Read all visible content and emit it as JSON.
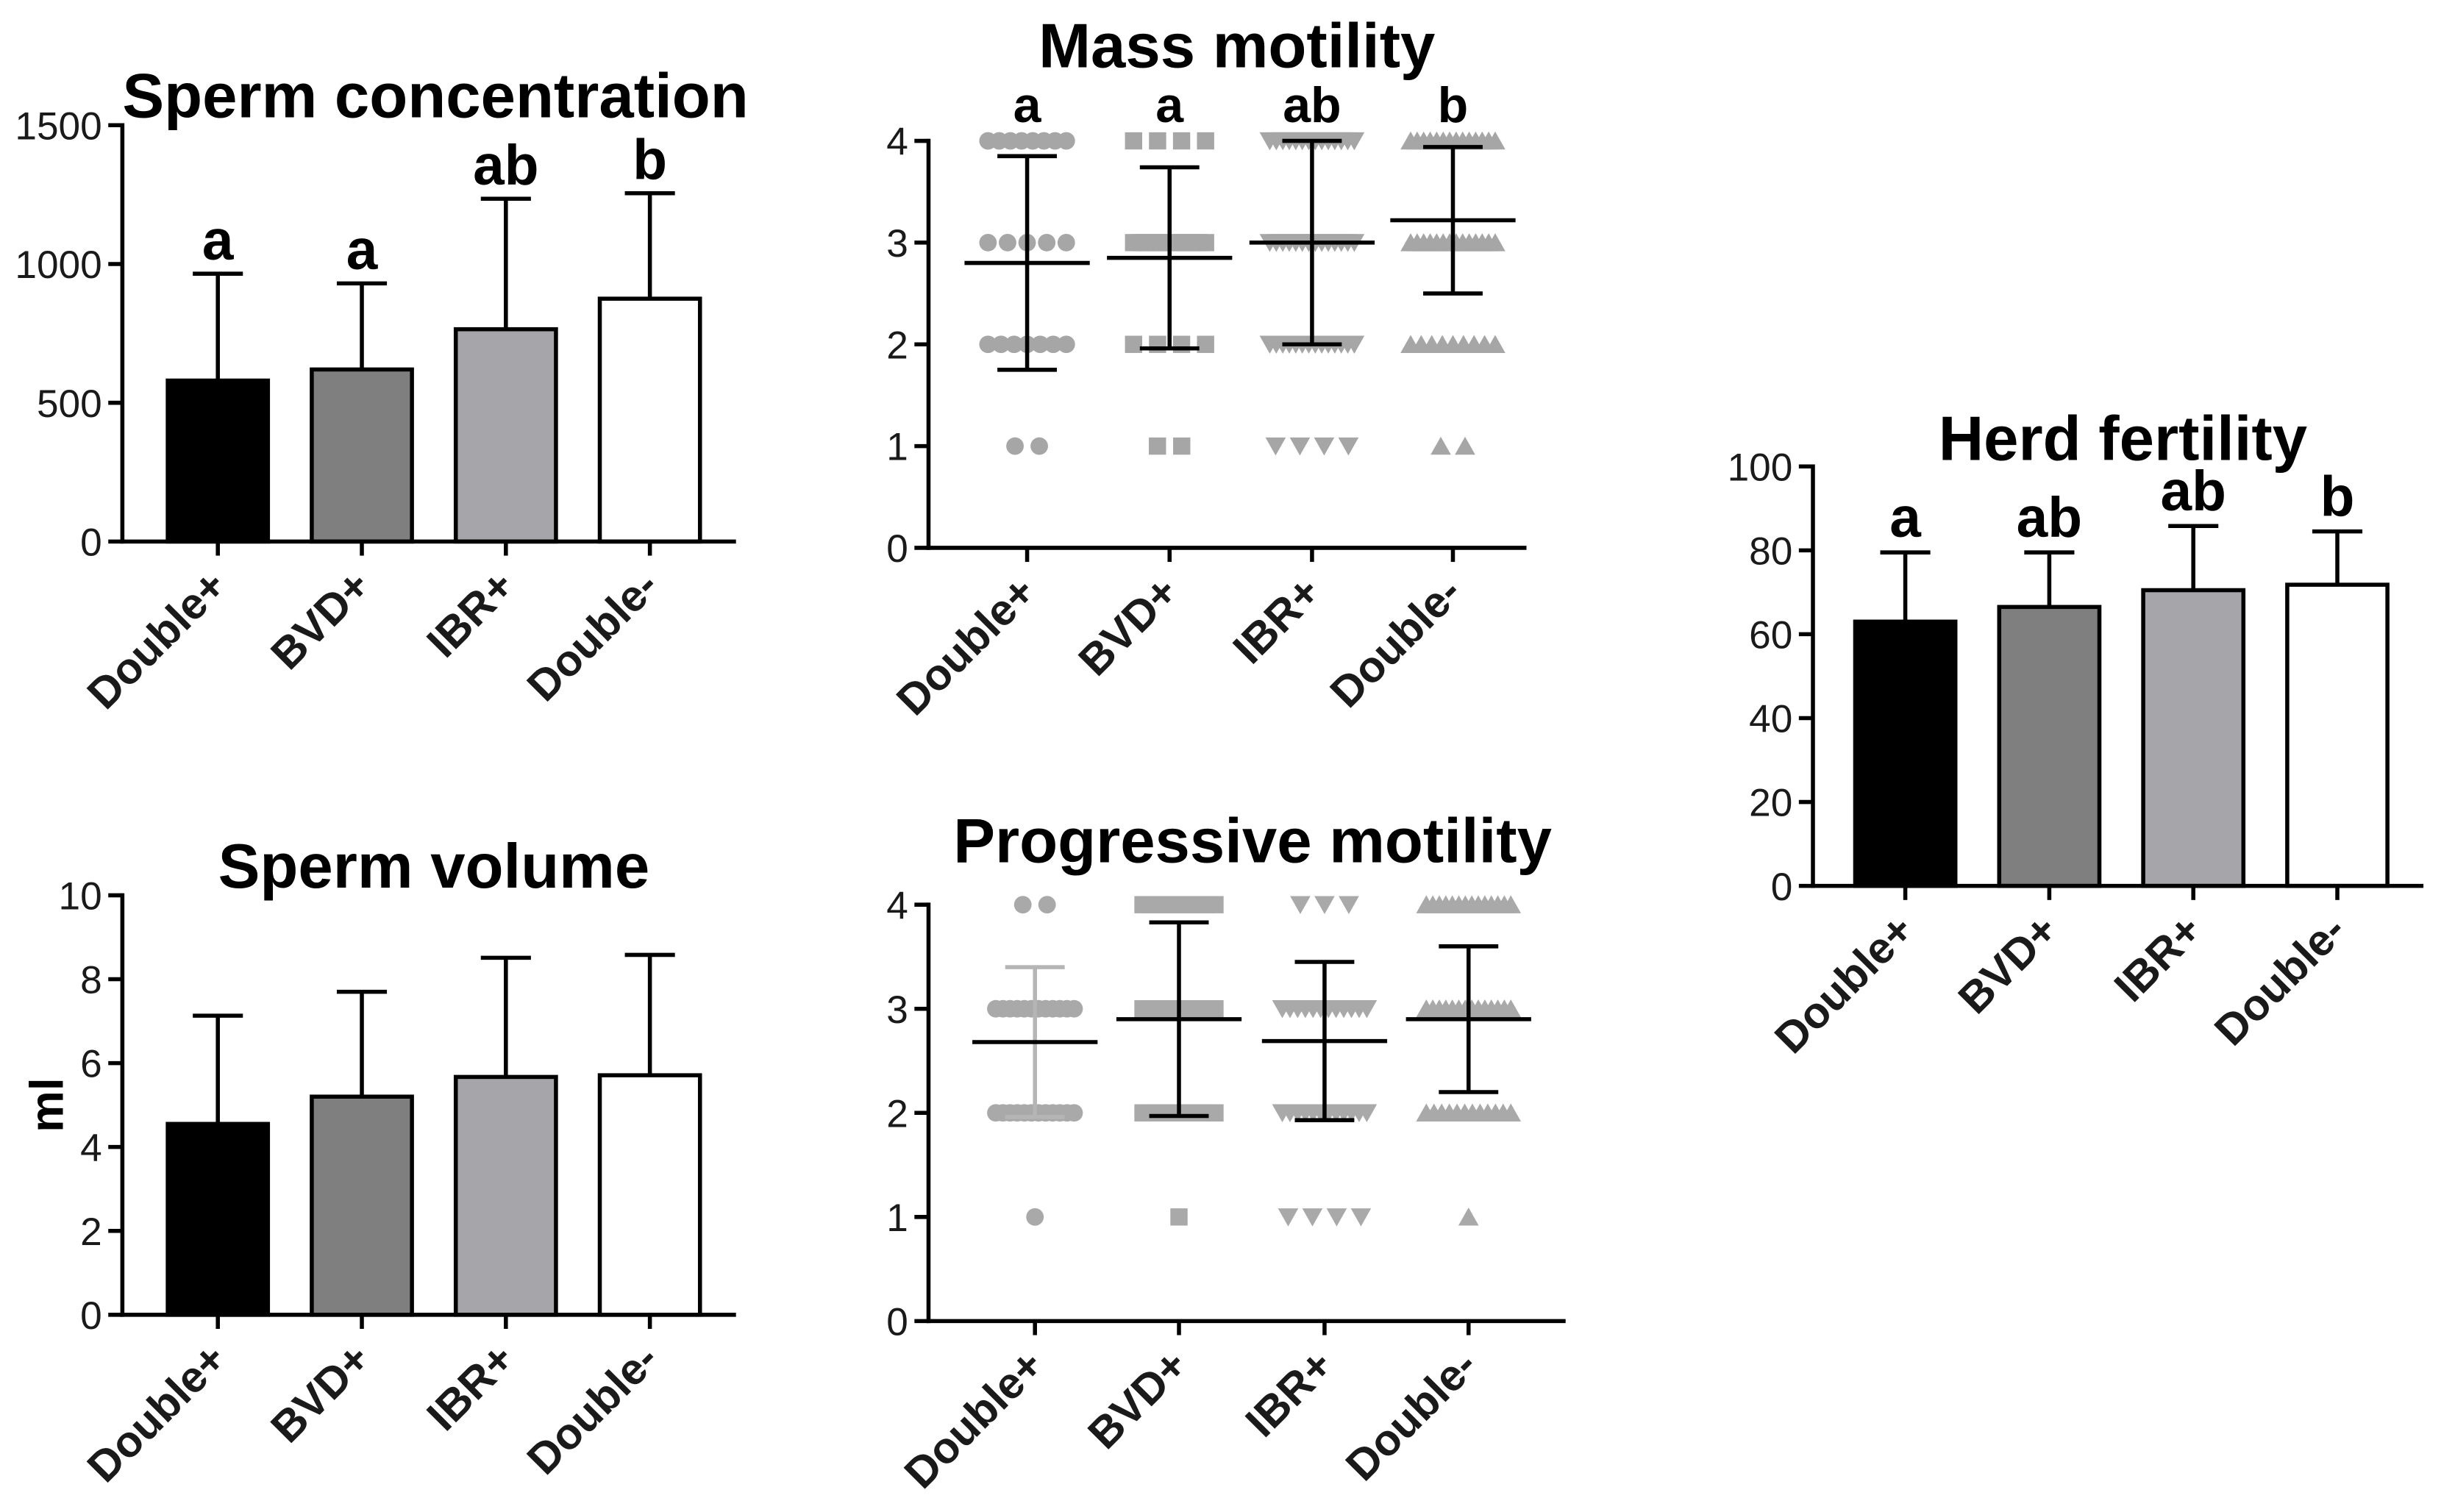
{
  "chart_data": [
    {
      "type": "bar",
      "title": "Sperm concentration",
      "categories": [
        "Double+",
        "BVD+",
        "IBR+",
        "Double-"
      ],
      "values": [
        580,
        620,
        765,
        875
      ],
      "sd": [
        385,
        310,
        470,
        380
      ],
      "letters": [
        "a",
        "a",
        "ab",
        "b"
      ],
      "ylim": [
        0,
        1500
      ],
      "yticks": [
        0,
        500,
        1000,
        1500
      ],
      "bar_colors": [
        "#000000",
        "#7f7f7f",
        "#a6a6aa",
        "#ffffff"
      ],
      "grid": false
    },
    {
      "type": "scatter",
      "title": "Mass motility",
      "categories": [
        "Double+",
        "BVD+",
        "IBR+",
        "Double-"
      ],
      "means": [
        2.8,
        2.85,
        3.0,
        3.22
      ],
      "sd": [
        1.05,
        0.89,
        1.0,
        0.72
      ],
      "letters": [
        "a",
        "a",
        "ab",
        "b"
      ],
      "ylim": [
        0,
        4
      ],
      "yticks": [
        0,
        1,
        2,
        3,
        4
      ],
      "markers": [
        "circle",
        "square",
        "triangle-down",
        "triangle-up"
      ],
      "point_color": "#a6a6a6",
      "sd_colors": [
        "#000000",
        "#000000",
        "#000000",
        "#000000"
      ],
      "points": [
        [
          {
            "y": 4,
            "n": 8
          },
          {
            "y": 3,
            "n": 5
          },
          {
            "y": 2,
            "n": 7
          },
          {
            "y": 1,
            "n": 2
          }
        ],
        [
          {
            "y": 4,
            "n": 4
          },
          {
            "y": 3,
            "n": 12
          },
          {
            "y": 2,
            "n": 4
          },
          {
            "y": 1,
            "n": 2
          }
        ],
        [
          {
            "y": 4,
            "n": 14
          },
          {
            "y": 3,
            "n": 14
          },
          {
            "y": 2,
            "n": 14
          },
          {
            "y": 1,
            "n": 4
          }
        ],
        [
          {
            "y": 4,
            "n": 14
          },
          {
            "y": 3,
            "n": 14
          },
          {
            "y": 2,
            "n": 9
          },
          {
            "y": 1,
            "n": 2
          }
        ]
      ],
      "grid": false
    },
    {
      "type": "bar",
      "title": "Herd fertility",
      "categories": [
        "Double+",
        "BVD+",
        "IBR+",
        "Double-"
      ],
      "values": [
        63,
        66.5,
        70.5,
        71.8
      ],
      "sd": [
        16.5,
        13,
        15.3,
        12.7
      ],
      "letters": [
        "a",
        "ab",
        "ab",
        "b"
      ],
      "ylim": [
        0,
        100
      ],
      "yticks": [
        0,
        20,
        40,
        60,
        80,
        100
      ],
      "bar_colors": [
        "#000000",
        "#7f7f7f",
        "#a6a6aa",
        "#ffffff"
      ],
      "grid": false
    },
    {
      "type": "bar",
      "title": "Sperm volume",
      "ylabel": "ml",
      "categories": [
        "Double+",
        "BVD+",
        "IBR+",
        "Double-"
      ],
      "values": [
        4.55,
        5.2,
        5.67,
        5.71
      ],
      "sd": [
        2.58,
        2.5,
        2.84,
        2.87
      ],
      "ylim": [
        0,
        10
      ],
      "yticks": [
        0,
        2,
        4,
        6,
        8,
        10
      ],
      "bar_colors": [
        "#000000",
        "#7f7f7f",
        "#a6a6aa",
        "#ffffff"
      ],
      "grid": false
    },
    {
      "type": "scatter",
      "title": "Progressive motility",
      "categories": [
        "Double+",
        "BVD+",
        "IBR+",
        "Double-"
      ],
      "means": [
        2.68,
        2.9,
        2.69,
        2.9
      ],
      "sd": [
        0.72,
        0.93,
        0.76,
        0.7
      ],
      "ylim": [
        0,
        4
      ],
      "yticks": [
        0,
        1,
        2,
        3,
        4
      ],
      "markers": [
        "circle",
        "square",
        "triangle-down",
        "triangle-up"
      ],
      "point_color": "#a9a9a9",
      "sd_colors": [
        "#b5b5b5",
        "#000000",
        "#000000",
        "#000000"
      ],
      "points": [
        [
          {
            "y": 4,
            "n": 2
          },
          {
            "y": 3,
            "n": 12
          },
          {
            "y": 2,
            "n": 12
          },
          {
            "y": 1,
            "n": 1
          }
        ],
        [
          {
            "y": 4,
            "n": 10
          },
          {
            "y": 3,
            "n": 10
          },
          {
            "y": 2,
            "n": 10
          },
          {
            "y": 1,
            "n": 1
          }
        ],
        [
          {
            "y": 4,
            "n": 3
          },
          {
            "y": 3,
            "n": 12
          },
          {
            "y": 2,
            "n": 12
          },
          {
            "y": 1,
            "n": 4
          }
        ],
        [
          {
            "y": 4,
            "n": 14
          },
          {
            "y": 3,
            "n": 14
          },
          {
            "y": 2,
            "n": 12
          },
          {
            "y": 1,
            "n": 1
          }
        ]
      ],
      "grid": false
    }
  ]
}
